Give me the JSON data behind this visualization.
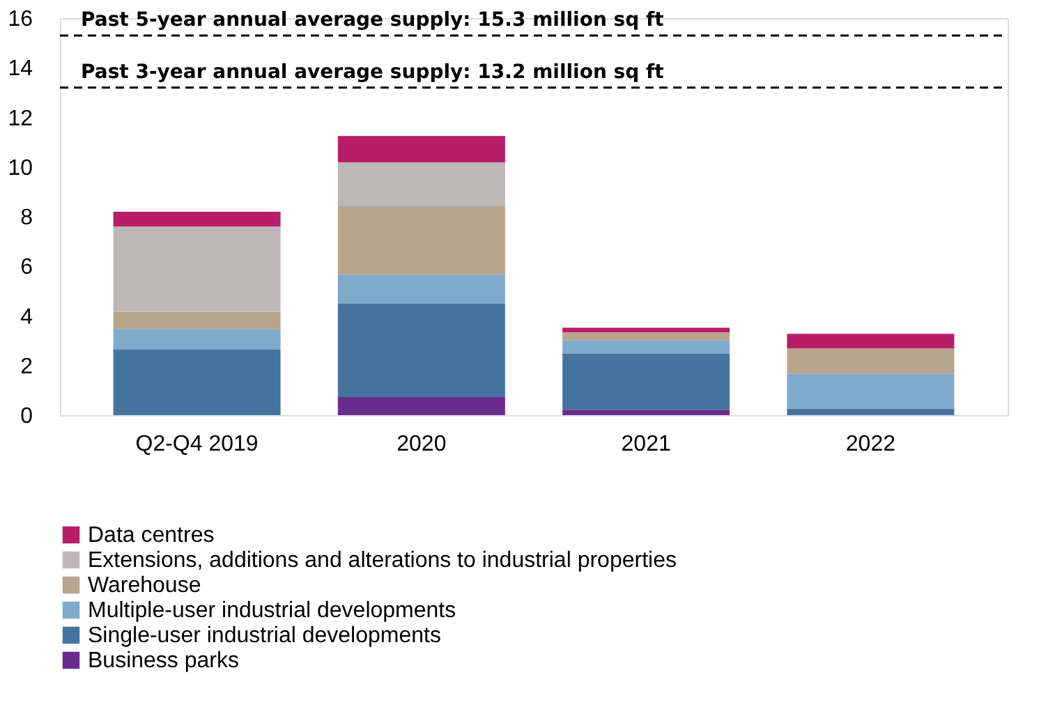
{
  "chart_data": {
    "type": "bar",
    "stacked": true,
    "categories": [
      "Q2-Q4 2019",
      "2020",
      "2021",
      "2022"
    ],
    "series": [
      {
        "name": "Business parks",
        "color": "#6a2c8c",
        "values": [
          0,
          0.73,
          0.22,
          0
        ]
      },
      {
        "name": "Single-user industrial developments",
        "color": "#4674a0",
        "values": [
          2.64,
          3.76,
          2.25,
          0.27
        ]
      },
      {
        "name": "Multiple-user industrial developments",
        "color": "#7eaacc",
        "values": [
          0.82,
          1.17,
          0.55,
          1.39
        ]
      },
      {
        "name": "Warehouse",
        "color": "#b7a68d",
        "values": [
          0.7,
          2.76,
          0.31,
          1.03
        ]
      },
      {
        "name": "Extensions, additions and alterations to industrial properties",
        "color": "#bcb8b8",
        "values": [
          3.44,
          1.76,
          0,
          0
        ]
      },
      {
        "name": "Data centres",
        "color": "#b81e68",
        "values": [
          0.6,
          1.07,
          0.19,
          0.59
        ]
      }
    ],
    "ylim": [
      0,
      16
    ],
    "yticks": [
      0,
      2,
      4,
      6,
      8,
      10,
      12,
      14,
      16
    ],
    "grid": false,
    "legend": "bottom",
    "ref_lines": [
      {
        "axis": "y",
        "value": 15.3,
        "label": "Past 5-year annual average supply: 15.3 million sq ft",
        "color": "#000000",
        "line_style": "dashed"
      },
      {
        "axis": "y",
        "value": 13.2,
        "label": "Past 3-year annual average supply: 13.2 million sq ft",
        "color": "#000000",
        "line_style": "dashed"
      }
    ]
  }
}
